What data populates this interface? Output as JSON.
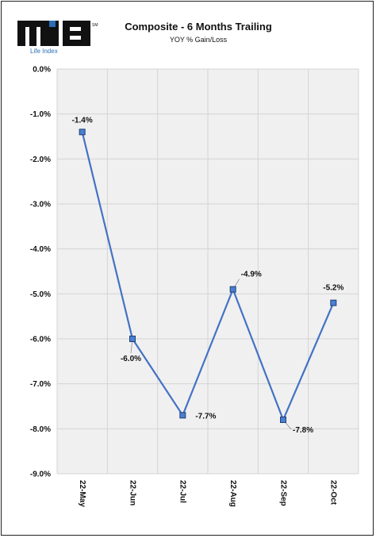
{
  "logo": {
    "mark": "mIB",
    "sub": "Life Index",
    "tm": "SM"
  },
  "chart_data": {
    "type": "line",
    "title": "Composite - 6 Months Trailing",
    "subtitle": "YOY % Gain/Loss",
    "categories": [
      "22-May",
      "22-Jun",
      "22-Jul",
      "22-Aug",
      "22-Sep",
      "22-Oct"
    ],
    "series": [
      {
        "values": [
          -1.4,
          -6.0,
          -7.7,
          -4.9,
          -7.8,
          -5.2
        ],
        "data_labels": [
          "-1.4%",
          "-6.0%",
          "-7.7%",
          "-4.9%",
          "-7.8%",
          "-5.2%"
        ]
      }
    ],
    "ylim": [
      -9,
      0
    ],
    "yticks": [
      "0.0%",
      "-1.0%",
      "-2.0%",
      "-3.0%",
      "-4.0%",
      "-5.0%",
      "-6.0%",
      "-7.0%",
      "-8.0%",
      "-9.0%"
    ],
    "ytick_values": [
      0,
      -1,
      -2,
      -3,
      -4,
      -5,
      -6,
      -7,
      -8,
      -9
    ],
    "grid": true,
    "colors": {
      "line": "#4472c4",
      "marker_fill": "#4a7fd0",
      "marker_edge": "#1f3f7a",
      "plot_bg": "#f0f0f0",
      "grid": "#d4d4d4"
    }
  }
}
